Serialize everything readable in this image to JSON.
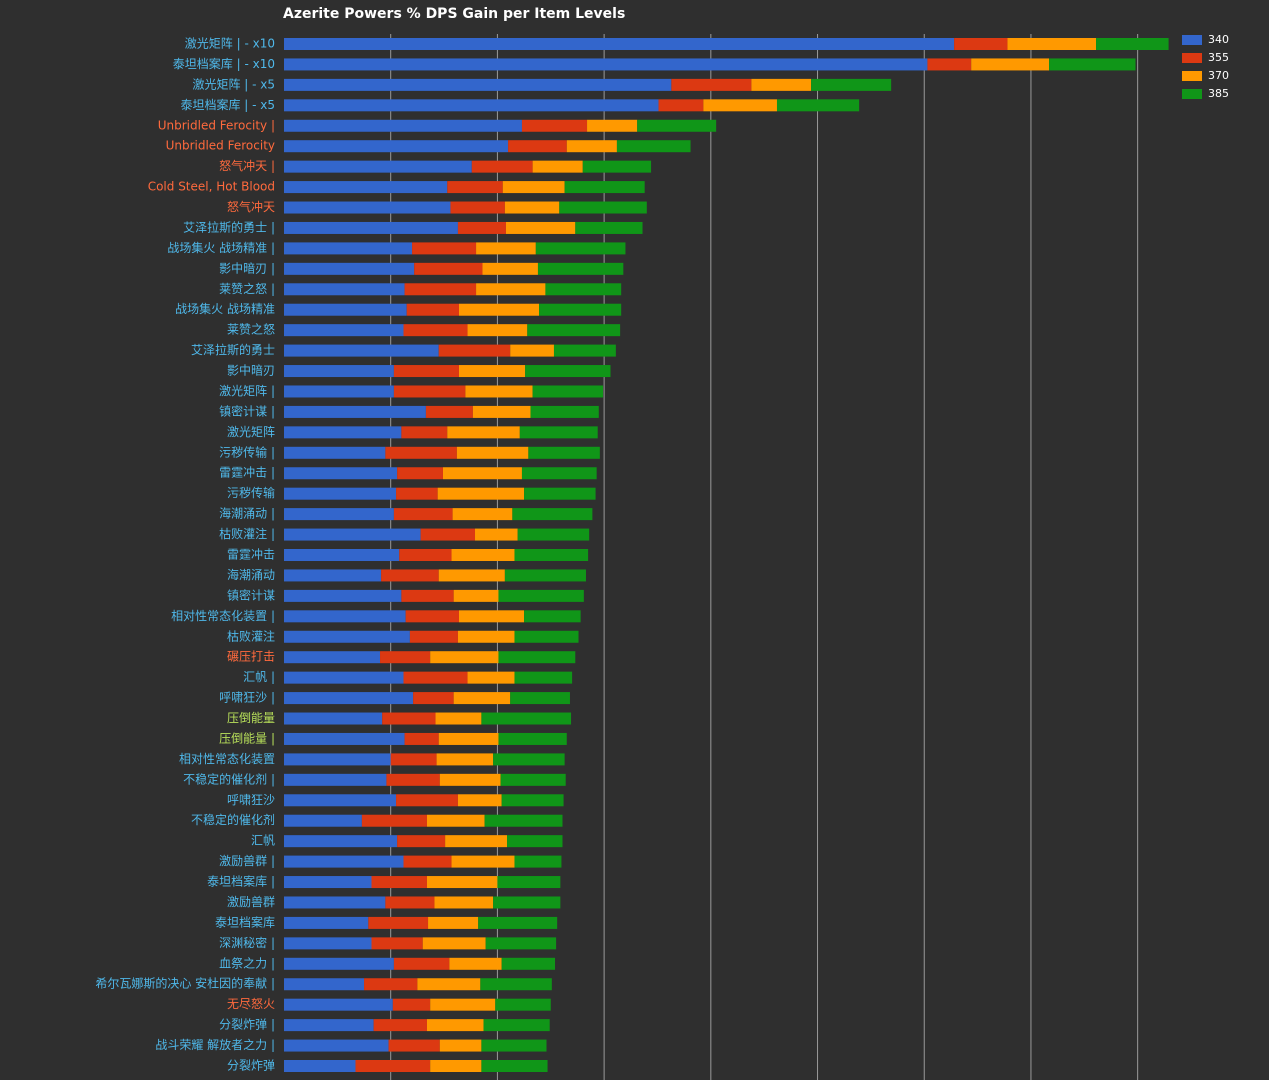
{
  "chart_data": {
    "type": "stacked-bar-horizontal",
    "title": "Azerite Powers % DPS Gain per Item Levels",
    "categories": [
      "激光矩阵 | - x10",
      "泰坦档案库 | - x10",
      "激光矩阵 | - x5",
      "泰坦档案库 | - x5",
      "Unbridled Ferocity |",
      "Unbridled Ferocity",
      "怒气冲天 |",
      "Cold Steel, Hot Blood",
      "怒气冲天",
      "艾泽拉斯的勇士 |",
      "战场集火 战场精准 |",
      "影中暗刃 |",
      "莱赞之怒 |",
      "战场集火 战场精准",
      "莱赞之怒",
      "艾泽拉斯的勇士",
      "影中暗刃",
      "激光矩阵 |",
      "镇密计谋 |",
      "激光矩阵",
      "污秽传输 |",
      "雷霆冲击 |",
      "污秽传输",
      "海潮涌动 |",
      "枯败灌注 |",
      "雷霆冲击",
      "海潮涌动",
      "镇密计谋",
      "相对性常态化装置 |",
      "枯败灌注",
      "碾压打击",
      "汇帆 |",
      "呼啸狂沙 |",
      "压倒能量",
      "压倒能量 |",
      "相对性常态化装置",
      "不稳定的催化剂 |",
      "呼啸狂沙",
      "不稳定的催化剂",
      "汇帆",
      "激励兽群 |",
      "泰坦档案库 |",
      "激励兽群",
      "泰坦档案库",
      "深渊秘密 |",
      "血祭之力 |",
      "希尔瓦娜斯的决心 安杜因的奉献 |",
      "无尽怒火",
      "分裂炸弹 |",
      "战斗荣耀 解放者之力 |",
      "分裂炸弹"
    ],
    "category_colors": [
      "#4fb8ea",
      "#4fb8ea",
      "#4fb8ea",
      "#4fb8ea",
      "#ff6a3d",
      "#ff6a3d",
      "#ff6a3d",
      "#ff6a3d",
      "#ff6a3d",
      "#4fb8ea",
      "#4fb8ea",
      "#4fb8ea",
      "#4fb8ea",
      "#4fb8ea",
      "#4fb8ea",
      "#4fb8ea",
      "#4fb8ea",
      "#4fb8ea",
      "#4fb8ea",
      "#4fb8ea",
      "#4fb8ea",
      "#4fb8ea",
      "#4fb8ea",
      "#4fb8ea",
      "#4fb8ea",
      "#4fb8ea",
      "#4fb8ea",
      "#4fb8ea",
      "#4fb8ea",
      "#4fb8ea",
      "#ff6a3d",
      "#4fb8ea",
      "#4fb8ea",
      "#b8e05a",
      "#b8e05a",
      "#4fb8ea",
      "#4fb8ea",
      "#4fb8ea",
      "#4fb8ea",
      "#4fb8ea",
      "#4fb8ea",
      "#4fb8ea",
      "#4fb8ea",
      "#4fb8ea",
      "#4fb8ea",
      "#4fb8ea",
      "#4fb8ea",
      "#ff6a3d",
      "#4fb8ea",
      "#4fb8ea",
      "#4fb8ea"
    ],
    "series": [
      {
        "name": "340",
        "color": "#3366cc",
        "values": [
          6.28,
          6.03,
          3.63,
          3.51,
          2.23,
          2.1,
          1.76,
          1.53,
          1.56,
          1.63,
          1.2,
          1.22,
          1.13,
          1.15,
          1.12,
          1.45,
          1.03,
          1.03,
          1.33,
          1.1,
          0.95,
          1.06,
          1.05,
          1.03,
          1.28,
          1.08,
          0.91,
          1.1,
          1.14,
          1.18,
          0.9,
          1.12,
          1.21,
          0.92,
          1.13,
          1.0,
          0.96,
          1.05,
          0.73,
          1.06,
          1.12,
          0.82,
          0.95,
          0.79,
          0.82,
          1.03,
          0.75,
          1.02,
          0.84,
          0.98,
          0.67
        ]
      },
      {
        "name": "355",
        "color": "#dc3912",
        "values": [
          0.5,
          0.41,
          0.75,
          0.42,
          0.61,
          0.55,
          0.57,
          0.52,
          0.51,
          0.45,
          0.6,
          0.64,
          0.67,
          0.49,
          0.6,
          0.67,
          0.61,
          0.67,
          0.44,
          0.43,
          0.67,
          0.43,
          0.39,
          0.55,
          0.51,
          0.49,
          0.54,
          0.49,
          0.5,
          0.45,
          0.47,
          0.6,
          0.38,
          0.5,
          0.32,
          0.43,
          0.5,
          0.58,
          0.61,
          0.45,
          0.45,
          0.52,
          0.46,
          0.56,
          0.48,
          0.52,
          0.5,
          0.35,
          0.5,
          0.48,
          0.7
        ]
      },
      {
        "name": "370",
        "color": "#ff9900",
        "values": [
          0.83,
          0.73,
          0.56,
          0.69,
          0.47,
          0.47,
          0.47,
          0.58,
          0.51,
          0.65,
          0.56,
          0.52,
          0.65,
          0.75,
          0.56,
          0.41,
          0.62,
          0.63,
          0.54,
          0.68,
          0.67,
          0.74,
          0.81,
          0.56,
          0.4,
          0.59,
          0.62,
          0.42,
          0.61,
          0.53,
          0.64,
          0.44,
          0.53,
          0.43,
          0.56,
          0.53,
          0.57,
          0.41,
          0.54,
          0.58,
          0.59,
          0.66,
          0.55,
          0.47,
          0.59,
          0.49,
          0.59,
          0.61,
          0.53,
          0.39,
          0.48
        ]
      },
      {
        "name": "385",
        "color": "#109618",
        "values": [
          0.68,
          0.81,
          0.75,
          0.77,
          0.74,
          0.69,
          0.64,
          0.75,
          0.82,
          0.63,
          0.84,
          0.8,
          0.71,
          0.77,
          0.87,
          0.58,
          0.8,
          0.66,
          0.64,
          0.73,
          0.67,
          0.7,
          0.67,
          0.75,
          0.67,
          0.69,
          0.76,
          0.8,
          0.53,
          0.6,
          0.72,
          0.54,
          0.56,
          0.84,
          0.64,
          0.67,
          0.61,
          0.58,
          0.73,
          0.52,
          0.44,
          0.59,
          0.63,
          0.74,
          0.66,
          0.5,
          0.67,
          0.52,
          0.62,
          0.61,
          0.62
        ]
      }
    ],
    "xlim": [
      0,
      8.35
    ],
    "xticks": [
      1,
      2,
      3,
      4,
      5,
      6,
      7,
      8
    ],
    "grid": true,
    "legend": "top-right"
  }
}
